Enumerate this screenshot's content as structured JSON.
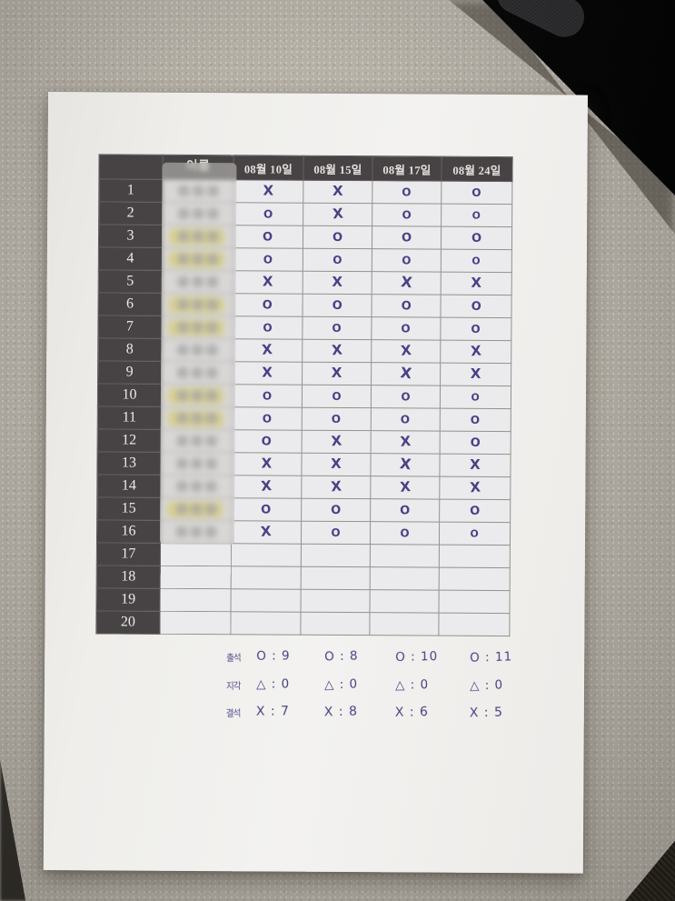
{
  "document": {
    "table": {
      "header": {
        "name_label": "이름",
        "dates": [
          "08월 10일",
          "08월 15일",
          "08월 17일",
          "08월 24일"
        ]
      },
      "rows": [
        {
          "num": "1",
          "blurred_name": true,
          "highlight": false,
          "marks": [
            "X",
            "X",
            "O",
            "O"
          ]
        },
        {
          "num": "2",
          "blurred_name": true,
          "highlight": false,
          "marks": [
            "O",
            "X",
            "O",
            "O"
          ]
        },
        {
          "num": "3",
          "blurred_name": true,
          "highlight": true,
          "marks": [
            "O",
            "O",
            "O",
            "O"
          ]
        },
        {
          "num": "4",
          "blurred_name": true,
          "highlight": true,
          "marks": [
            "O",
            "O",
            "O",
            "O"
          ]
        },
        {
          "num": "5",
          "blurred_name": true,
          "highlight": false,
          "marks": [
            "X",
            "X",
            "X",
            "X"
          ]
        },
        {
          "num": "6",
          "blurred_name": true,
          "highlight": true,
          "marks": [
            "O",
            "O",
            "O",
            "O"
          ]
        },
        {
          "num": "7",
          "blurred_name": true,
          "highlight": true,
          "marks": [
            "O",
            "O",
            "O",
            "O"
          ]
        },
        {
          "num": "8",
          "blurred_name": true,
          "highlight": false,
          "marks": [
            "X",
            "X",
            "X",
            "X"
          ]
        },
        {
          "num": "9",
          "blurred_name": true,
          "highlight": false,
          "marks": [
            "X",
            "X",
            "X",
            "X"
          ]
        },
        {
          "num": "10",
          "blurred_name": true,
          "highlight": true,
          "marks": [
            "O",
            "O",
            "O",
            "O"
          ]
        },
        {
          "num": "11",
          "blurred_name": true,
          "highlight": true,
          "marks": [
            "O",
            "O",
            "O",
            "O"
          ]
        },
        {
          "num": "12",
          "blurred_name": true,
          "highlight": false,
          "marks": [
            "O",
            "X",
            "X",
            "O"
          ]
        },
        {
          "num": "13",
          "blurred_name": true,
          "highlight": false,
          "marks": [
            "X",
            "X",
            "X",
            "X"
          ]
        },
        {
          "num": "14",
          "blurred_name": true,
          "highlight": false,
          "marks": [
            "X",
            "X",
            "X",
            "X"
          ]
        },
        {
          "num": "15",
          "blurred_name": true,
          "highlight": true,
          "marks": [
            "O",
            "O",
            "O",
            "O"
          ]
        },
        {
          "num": "16",
          "blurred_name": true,
          "highlight": false,
          "marks": [
            "X",
            "O",
            "O",
            "O"
          ]
        },
        {
          "num": "17",
          "blurred_name": false,
          "highlight": false,
          "marks": [
            "",
            "",
            "",
            ""
          ]
        },
        {
          "num": "18",
          "blurred_name": false,
          "highlight": false,
          "marks": [
            "",
            "",
            "",
            ""
          ]
        },
        {
          "num": "19",
          "blurred_name": false,
          "highlight": false,
          "marks": [
            "",
            "",
            "",
            ""
          ]
        },
        {
          "num": "20",
          "blurred_name": false,
          "highlight": false,
          "marks": [
            "",
            "",
            "",
            ""
          ]
        }
      ]
    },
    "summary": {
      "rows": [
        {
          "label": "출석",
          "symbol": "O",
          "cells": [
            "O : 9",
            "O : 8",
            "O : 10",
            "O : 11"
          ]
        },
        {
          "label": "지각",
          "symbol": "△",
          "cells": [
            "△ : 0",
            "△ : 0",
            "△ : 0",
            "△ : 0"
          ]
        },
        {
          "label": "결석",
          "symbol": "X",
          "cells": [
            "X : 7",
            "X : 8",
            "X : 6",
            "X : 5"
          ]
        }
      ]
    },
    "colors": {
      "ink": "#474185",
      "highlight_marker": "#e8d63c",
      "paper": "#f0efec",
      "desk": "#b6b1a7",
      "table_header_bg": "#474344"
    }
  }
}
